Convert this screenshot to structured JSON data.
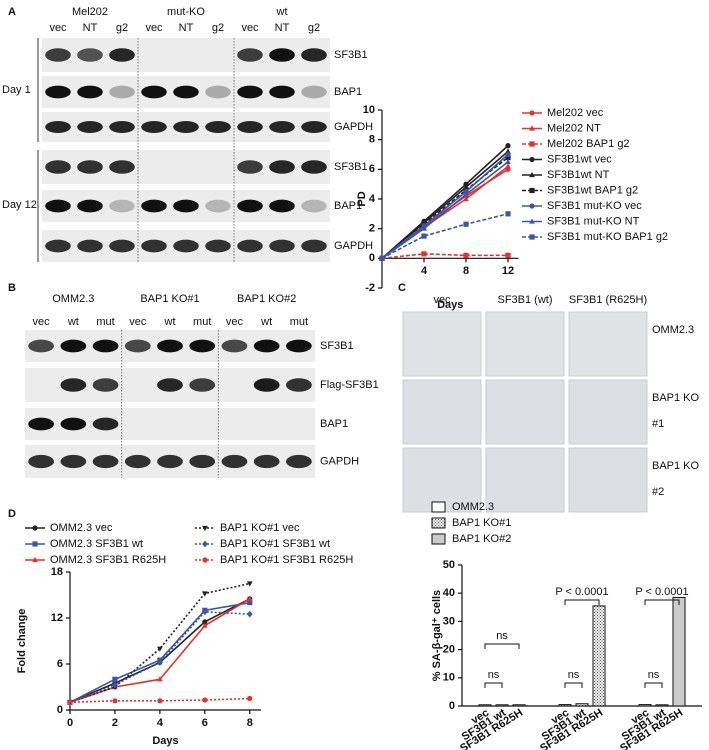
{
  "panel_labels": [
    "A",
    "B",
    "C",
    "D"
  ],
  "blot_a": {
    "groups": [
      "Mel202",
      "mut-KO",
      "wt"
    ],
    "lanes": [
      "vec",
      "NT",
      "g2"
    ],
    "days": [
      "Day 1",
      "Day 12"
    ],
    "proteins": [
      "SF3B1",
      "BAP1",
      "GAPDH"
    ]
  },
  "blot_b": {
    "groups": [
      "OMM2.3",
      "BAP1 KO#1",
      "BAP1 KO#2"
    ],
    "lanes": [
      "vec",
      "wt",
      "mut"
    ],
    "proteins": [
      "SF3B1",
      "Flag-SF3B1",
      "BAP1",
      "GAPDH"
    ]
  },
  "images_c": {
    "columns": [
      "vec",
      "SF3B1 (wt)",
      "SF3B1 (R625H)"
    ],
    "rows": [
      [
        "OMM2.3"
      ],
      [
        "BAP1 KO",
        "#1"
      ],
      [
        "BAP1 KO",
        "#2"
      ]
    ]
  },
  "chart_data": [
    {
      "type": "line",
      "xlabel": "Days",
      "ylabel": "PD",
      "x": [
        0,
        4,
        8,
        12
      ],
      "xlim": [
        0,
        13
      ],
      "xticks": [
        4,
        8,
        12
      ],
      "ylim": [
        -2,
        10
      ],
      "yticks": [
        -2,
        0,
        2,
        4,
        6,
        8,
        10
      ],
      "series": [
        {
          "name": "Mel202 vec",
          "color": "#e8302a",
          "marker": "circle",
          "dash": false,
          "values": [
            0,
            2.2,
            4.2,
            6.0
          ]
        },
        {
          "name": "Mel202 NT",
          "color": "#e8302a",
          "marker": "triangle",
          "dash": false,
          "values": [
            0,
            2.1,
            4.0,
            6.2
          ]
        },
        {
          "name": "Mel202 BAP1 g2",
          "color": "#e8302a",
          "marker": "square",
          "dash": true,
          "values": [
            0,
            0.3,
            0.2,
            0.2
          ]
        },
        {
          "name": "SF3B1wt vec",
          "color": "#222222",
          "marker": "circle",
          "dash": false,
          "values": [
            0,
            2.5,
            5.0,
            7.6
          ]
        },
        {
          "name": "SF3B1wt NT",
          "color": "#222222",
          "marker": "triangle",
          "dash": false,
          "values": [
            0,
            2.4,
            4.8,
            7.2
          ]
        },
        {
          "name": "SF3B1wt BAP1 g2",
          "color": "#222222",
          "marker": "square",
          "dash": true,
          "values": [
            0,
            2.3,
            4.6,
            6.8
          ]
        },
        {
          "name": "SF3B1 mut-KO vec",
          "color": "#3a56a8",
          "marker": "circle",
          "dash": false,
          "values": [
            0,
            2.2,
            4.5,
            7.0
          ]
        },
        {
          "name": "SF3B1 mut-KO NT",
          "color": "#3a56a8",
          "marker": "triangle",
          "dash": false,
          "values": [
            0,
            2.0,
            4.3,
            6.5
          ]
        },
        {
          "name": "SF3B1 mut-KO BAP1 g2",
          "color": "#3a56a8",
          "marker": "square",
          "dash": true,
          "values": [
            0,
            1.5,
            2.3,
            3.0
          ]
        }
      ]
    },
    {
      "type": "line",
      "xlabel": "Days",
      "ylabel": "Fold change",
      "x": [
        0,
        2,
        4,
        6,
        8
      ],
      "xlim": [
        0,
        8.5
      ],
      "xticks": [
        0,
        2,
        4,
        6,
        8
      ],
      "ylim": [
        0,
        18
      ],
      "yticks": [
        0,
        6,
        12,
        18
      ],
      "series": [
        {
          "name": "OMM2.3 vec",
          "color": "#222222",
          "marker": "circle",
          "dash": false,
          "values": [
            1,
            3.5,
            6.2,
            11.5,
            14.5
          ]
        },
        {
          "name": "OMM2.3 SF3B1 wt",
          "color": "#3a56a8",
          "marker": "square",
          "dash": false,
          "values": [
            1,
            4,
            6.5,
            13,
            14
          ]
        },
        {
          "name": "OMM2.3 SF3B1 R625H",
          "color": "#e8302a",
          "marker": "triangle",
          "dash": false,
          "values": [
            1,
            3,
            4,
            11,
            14.5
          ]
        },
        {
          "name": "BAP1 KO#1 vec",
          "color": "#222222",
          "marker": "triangle-down",
          "dash": true,
          "values": [
            1,
            3,
            8,
            15.2,
            16.5
          ]
        },
        {
          "name": "BAP1 KO#1 SF3B1 wt",
          "color": "#3a56a8",
          "marker": "diamond",
          "dash": true,
          "values": [
            1,
            3.3,
            6.2,
            12.8,
            12.5
          ]
        },
        {
          "name": "BAP1 KO#1 SF3B1 R625H",
          "color": "#e8302a",
          "marker": "circle",
          "dash": true,
          "values": [
            1,
            1.2,
            1.2,
            1.3,
            1.5
          ]
        }
      ]
    },
    {
      "type": "bar",
      "ylabel": "% SA-β-gal⁺ cells",
      "categories": [
        "vec",
        "SF3B1 wt",
        "SF3B1 R625H"
      ],
      "ylim": [
        0,
        50
      ],
      "yticks": [
        0,
        10,
        20,
        30,
        40,
        50
      ],
      "series": [
        {
          "name": "OMM2.3",
          "color": "#ffffff",
          "hatch": false,
          "values": [
            0.3,
            0.4,
            0.4
          ]
        },
        {
          "name": "BAP1 KO#1",
          "color": "#dddddd",
          "hatch": true,
          "values": [
            0.5,
            0.8,
            35.5
          ]
        },
        {
          "name": "BAP1 KO#2",
          "color": "#cccccc",
          "hatch": false,
          "values": [
            0.5,
            0.3,
            38.5
          ]
        }
      ],
      "annotations": [
        "ns",
        "ns",
        "ns",
        "P < 0.0001",
        "ns",
        "P < 0.0001"
      ]
    }
  ]
}
